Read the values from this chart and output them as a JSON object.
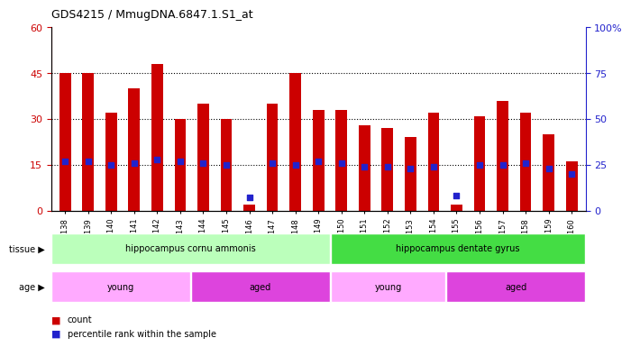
{
  "title": "GDS4215 / MmugDNA.6847.1.S1_at",
  "samples": [
    "GSM297138",
    "GSM297139",
    "GSM297140",
    "GSM297141",
    "GSM297142",
    "GSM297143",
    "GSM297144",
    "GSM297145",
    "GSM297146",
    "GSM297147",
    "GSM297148",
    "GSM297149",
    "GSM297150",
    "GSM297151",
    "GSM297152",
    "GSM297153",
    "GSM297154",
    "GSM297155",
    "GSM297156",
    "GSM297157",
    "GSM297158",
    "GSM297159",
    "GSM297160"
  ],
  "counts": [
    45,
    45,
    32,
    40,
    48,
    30,
    35,
    30,
    2,
    35,
    45,
    33,
    33,
    28,
    27,
    24,
    32,
    2,
    31,
    36,
    32,
    25,
    16
  ],
  "percentiles": [
    27,
    27,
    25,
    26,
    28,
    27,
    26,
    25,
    7,
    26,
    25,
    27,
    26,
    24,
    24,
    23,
    24,
    8,
    25,
    25,
    26,
    23,
    20
  ],
  "bar_color": "#cc0000",
  "dot_color": "#2222cc",
  "left_ylim": [
    0,
    60
  ],
  "left_yticks": [
    0,
    15,
    30,
    45,
    60
  ],
  "right_ylim": [
    0,
    100
  ],
  "right_yticks": [
    0,
    25,
    50,
    75,
    100
  ],
  "right_yticklabels": [
    "0",
    "25",
    "50",
    "75",
    "100%"
  ],
  "tissue_groups": [
    {
      "label": "hippocampus cornu ammonis",
      "start": 0,
      "end": 12,
      "color": "#bbffbb"
    },
    {
      "label": "hippocampus dentate gyrus",
      "start": 12,
      "end": 23,
      "color": "#44dd44"
    }
  ],
  "age_groups": [
    {
      "label": "young",
      "start": 0,
      "end": 6,
      "color": "#ffaaff"
    },
    {
      "label": "aged",
      "start": 6,
      "end": 12,
      "color": "#dd44dd"
    },
    {
      "label": "young",
      "start": 12,
      "end": 17,
      "color": "#ffaaff"
    },
    {
      "label": "aged",
      "start": 17,
      "end": 23,
      "color": "#dd44dd"
    }
  ],
  "left_tick_color": "#cc0000",
  "right_tick_color": "#2222cc",
  "bar_width": 0.5
}
